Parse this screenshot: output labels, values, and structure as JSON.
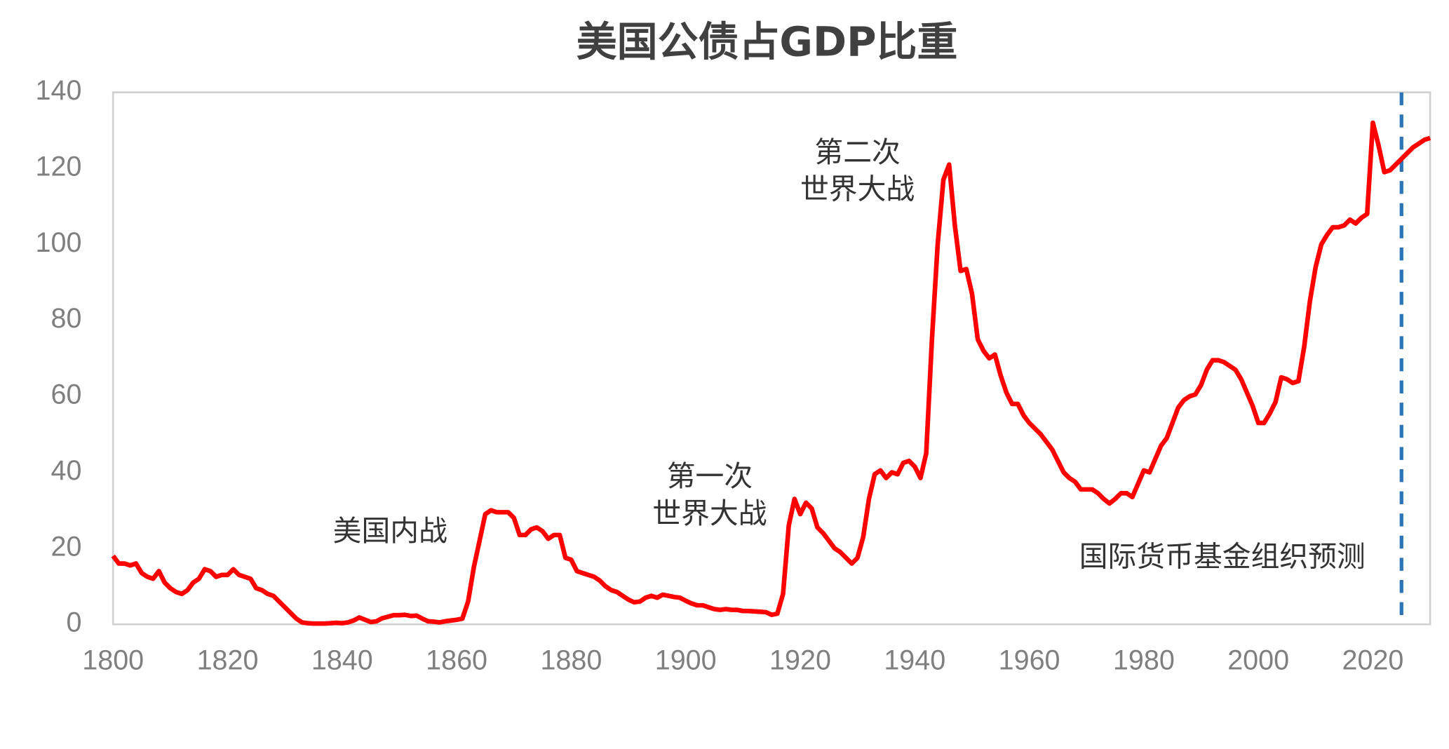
{
  "chart_data": {
    "type": "line",
    "title": "美国公债占GDP比重",
    "x": [
      1800,
      1801,
      1802,
      1803,
      1804,
      1805,
      1806,
      1807,
      1808,
      1809,
      1810,
      1811,
      1812,
      1813,
      1814,
      1815,
      1816,
      1817,
      1818,
      1819,
      1820,
      1821,
      1822,
      1823,
      1824,
      1825,
      1826,
      1827,
      1828,
      1829,
      1830,
      1831,
      1832,
      1833,
      1834,
      1835,
      1836,
      1837,
      1838,
      1839,
      1840,
      1841,
      1842,
      1843,
      1844,
      1845,
      1846,
      1847,
      1848,
      1849,
      1850,
      1851,
      1852,
      1853,
      1854,
      1855,
      1856,
      1857,
      1858,
      1859,
      1860,
      1861,
      1862,
      1863,
      1864,
      1865,
      1866,
      1867,
      1868,
      1869,
      1870,
      1871,
      1872,
      1873,
      1874,
      1875,
      1876,
      1877,
      1878,
      1879,
      1880,
      1881,
      1882,
      1883,
      1884,
      1885,
      1886,
      1887,
      1888,
      1889,
      1890,
      1891,
      1892,
      1893,
      1894,
      1895,
      1896,
      1897,
      1898,
      1899,
      1900,
      1901,
      1902,
      1903,
      1904,
      1905,
      1906,
      1907,
      1908,
      1909,
      1910,
      1911,
      1912,
      1913,
      1914,
      1915,
      1916,
      1917,
      1918,
      1919,
      1920,
      1921,
      1922,
      1923,
      1924,
      1925,
      1926,
      1927,
      1928,
      1929,
      1930,
      1931,
      1932,
      1933,
      1934,
      1935,
      1936,
      1937,
      1938,
      1939,
      1940,
      1941,
      1942,
      1943,
      1944,
      1945,
      1946,
      1947,
      1948,
      1949,
      1950,
      1951,
      1952,
      1953,
      1954,
      1955,
      1956,
      1957,
      1958,
      1959,
      1960,
      1961,
      1962,
      1963,
      1964,
      1965,
      1966,
      1967,
      1968,
      1969,
      1970,
      1971,
      1972,
      1973,
      1974,
      1975,
      1976,
      1977,
      1978,
      1979,
      1980,
      1981,
      1982,
      1983,
      1984,
      1985,
      1986,
      1987,
      1988,
      1989,
      1990,
      1991,
      1992,
      1993,
      1994,
      1995,
      1996,
      1997,
      1998,
      1999,
      2000,
      2001,
      2002,
      2003,
      2004,
      2005,
      2006,
      2007,
      2008,
      2009,
      2010,
      2011,
      2012,
      2013,
      2014,
      2015,
      2016,
      2017,
      2018,
      2019,
      2020,
      2021,
      2022,
      2023,
      2024,
      2025,
      2026,
      2027,
      2028,
      2029,
      2030
    ],
    "series": [
      {
        "color": "#ff0000",
        "values": [
          18,
          16,
          16,
          15.5,
          16,
          13.5,
          12.5,
          12,
          14,
          11,
          9.5,
          8.5,
          8,
          9,
          11,
          12,
          14.5,
          14,
          12.5,
          13,
          13,
          14.5,
          13,
          12.5,
          12,
          9.5,
          9,
          8,
          7.5,
          6,
          4.5,
          3,
          1.5,
          0.5,
          0.3,
          0.2,
          0.2,
          0.2,
          0.3,
          0.4,
          0.3,
          0.5,
          1,
          1.8,
          1.2,
          0.6,
          0.8,
          1.6,
          2,
          2.4,
          2.4,
          2.5,
          2.2,
          2.3,
          1.5,
          0.8,
          0.7,
          0.5,
          0.8,
          1,
          1.2,
          1.5,
          6,
          15,
          22,
          29,
          30,
          29.5,
          29.5,
          29.5,
          28,
          23.5,
          23.5,
          25,
          25.5,
          24.5,
          22.5,
          23.5,
          23.5,
          17.5,
          17,
          14,
          13.5,
          13,
          12.5,
          11.5,
          10,
          9,
          8.5,
          7.5,
          6.5,
          5.8,
          6,
          7,
          7.5,
          7,
          7.8,
          7.5,
          7.2,
          7,
          6.2,
          5.5,
          5,
          5,
          4.5,
          4,
          3.8,
          4,
          3.8,
          3.8,
          3.5,
          3.5,
          3.4,
          3.3,
          3.2,
          2.5,
          2.8,
          8,
          26,
          33,
          29,
          32,
          30.5,
          25.5,
          24,
          22,
          20,
          19,
          17.5,
          16,
          17.5,
          23,
          33,
          39.5,
          40.5,
          38.5,
          40,
          39.5,
          42.5,
          43,
          41.5,
          38.5,
          45,
          75,
          100,
          117,
          121,
          105,
          93,
          93.5,
          87,
          75,
          72,
          70,
          71,
          65.5,
          61,
          58,
          58,
          55,
          53,
          51.5,
          50,
          48,
          46,
          43,
          40,
          38.5,
          37.5,
          35.5,
          35.5,
          35.5,
          34.5,
          33,
          31.8,
          33,
          34.5,
          34.5,
          33.5,
          37,
          40.5,
          40,
          43.5,
          47,
          49,
          53,
          57,
          59,
          60,
          60.5,
          63,
          67,
          69.5,
          69.5,
          69,
          68,
          67,
          64.5,
          61,
          57.5,
          53,
          53,
          55.5,
          58.5,
          65,
          64.5,
          63.5,
          64,
          73,
          85,
          94,
          100,
          102.5,
          104.5,
          104.5,
          105,
          106.5,
          105.5,
          107,
          108,
          132,
          126,
          119,
          119.5,
          121,
          122.5,
          124,
          125.5,
          126.5,
          127.5,
          128
        ]
      }
    ],
    "xlim": [
      1800,
      2030
    ],
    "xticks": [
      1800,
      1820,
      1840,
      1860,
      1880,
      1900,
      1920,
      1940,
      1960,
      1980,
      2000,
      2020
    ],
    "ylim": [
      0,
      140
    ],
    "yticks": [
      0,
      20,
      40,
      60,
      80,
      100,
      120,
      140
    ],
    "forecast_start": 2025,
    "forecast_color": "#2e75b6",
    "annotations": [
      {
        "lines": [
          "美国内战"
        ]
      },
      {
        "lines": [
          "第一次",
          "世界大战"
        ]
      },
      {
        "lines": [
          "第二次",
          "世界大战"
        ]
      },
      {
        "lines": [
          "国际货币基金组织预测"
        ]
      }
    ]
  }
}
